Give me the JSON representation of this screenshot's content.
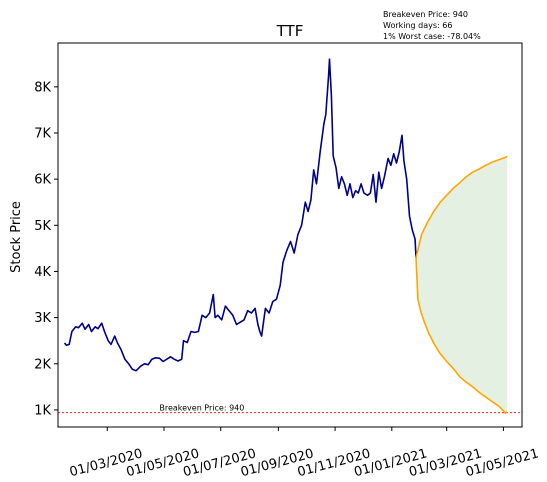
{
  "chart_data": {
    "type": "line",
    "title": "TTF",
    "ylabel": "Stock Price",
    "xlabel": "",
    "ylim": [
      630,
      8950
    ],
    "xlim": [
      "2020-01-08",
      "2021-05-21"
    ],
    "yticks": [
      {
        "value": 1000,
        "label": "1K"
      },
      {
        "value": 2000,
        "label": "2K"
      },
      {
        "value": 3000,
        "label": "3K"
      },
      {
        "value": 4000,
        "label": "4K"
      },
      {
        "value": 5000,
        "label": "5K"
      },
      {
        "value": 6000,
        "label": "6K"
      },
      {
        "value": 7000,
        "label": "7K"
      },
      {
        "value": 8000,
        "label": "8K"
      }
    ],
    "xticks": [
      {
        "date": "2020-03-01",
        "label": "01/03/2020"
      },
      {
        "date": "2020-05-01",
        "label": "01/05/2020"
      },
      {
        "date": "2020-07-01",
        "label": "01/07/2020"
      },
      {
        "date": "2020-09-01",
        "label": "01/09/2020"
      },
      {
        "date": "2020-11-01",
        "label": "01/11/2020"
      },
      {
        "date": "2021-01-01",
        "label": "01/01/2021"
      },
      {
        "date": "2021-03-01",
        "label": "01/03/2021"
      },
      {
        "date": "2021-05-01",
        "label": "01/05/2021"
      }
    ],
    "info_box": [
      "Breakeven Price: 940",
      "Working days: 66",
      "1% Worst case: -78.04%"
    ],
    "breakeven": {
      "value": 940,
      "label": "Breakeven Price: 940",
      "color": "#ff0000"
    },
    "colors": {
      "history": "#00008b",
      "projection": "#ffa500",
      "band": "#d6ead2"
    },
    "series": [
      {
        "role": "history",
        "points": [
          [
            "2020-01-15",
            2450
          ],
          [
            "2020-01-17",
            2400
          ],
          [
            "2020-01-20",
            2420
          ],
          [
            "2020-01-23",
            2700
          ],
          [
            "2020-01-27",
            2800
          ],
          [
            "2020-01-30",
            2780
          ],
          [
            "2020-02-03",
            2880
          ],
          [
            "2020-02-06",
            2750
          ],
          [
            "2020-02-10",
            2850
          ],
          [
            "2020-02-13",
            2700
          ],
          [
            "2020-02-17",
            2800
          ],
          [
            "2020-02-20",
            2760
          ],
          [
            "2020-02-24",
            2880
          ],
          [
            "2020-02-27",
            2700
          ],
          [
            "2020-03-02",
            2500
          ],
          [
            "2020-03-05",
            2420
          ],
          [
            "2020-03-09",
            2600
          ],
          [
            "2020-03-12",
            2450
          ],
          [
            "2020-03-16",
            2300
          ],
          [
            "2020-03-20",
            2100
          ],
          [
            "2020-03-24",
            2000
          ],
          [
            "2020-03-28",
            1880
          ],
          [
            "2020-04-01",
            1850
          ],
          [
            "2020-04-06",
            1950
          ],
          [
            "2020-04-10",
            2000
          ],
          [
            "2020-04-14",
            1980
          ],
          [
            "2020-04-18",
            2100
          ],
          [
            "2020-04-22",
            2130
          ],
          [
            "2020-04-26",
            2120
          ],
          [
            "2020-04-30",
            2050
          ],
          [
            "2020-05-04",
            2100
          ],
          [
            "2020-05-08",
            2150
          ],
          [
            "2020-05-12",
            2100
          ],
          [
            "2020-05-16",
            2060
          ],
          [
            "2020-05-20",
            2100
          ],
          [
            "2020-05-22",
            2500
          ],
          [
            "2020-05-26",
            2460
          ],
          [
            "2020-05-30",
            2700
          ],
          [
            "2020-06-03",
            2680
          ],
          [
            "2020-06-07",
            2700
          ],
          [
            "2020-06-11",
            3050
          ],
          [
            "2020-06-15",
            3000
          ],
          [
            "2020-06-19",
            3100
          ],
          [
            "2020-06-23",
            3500
          ],
          [
            "2020-06-25",
            3000
          ],
          [
            "2020-06-28",
            3050
          ],
          [
            "2020-07-02",
            2950
          ],
          [
            "2020-07-06",
            3250
          ],
          [
            "2020-07-10",
            3150
          ],
          [
            "2020-07-14",
            3050
          ],
          [
            "2020-07-18",
            2850
          ],
          [
            "2020-07-22",
            2900
          ],
          [
            "2020-07-26",
            2950
          ],
          [
            "2020-07-30",
            3150
          ],
          [
            "2020-08-03",
            3100
          ],
          [
            "2020-08-07",
            3200
          ],
          [
            "2020-08-10",
            2850
          ],
          [
            "2020-08-12",
            2700
          ],
          [
            "2020-08-14",
            2600
          ],
          [
            "2020-08-18",
            3200
          ],
          [
            "2020-08-22",
            3100
          ],
          [
            "2020-08-26",
            3350
          ],
          [
            "2020-08-30",
            3400
          ],
          [
            "2020-09-03",
            3700
          ],
          [
            "2020-09-06",
            4200
          ],
          [
            "2020-09-10",
            4450
          ],
          [
            "2020-09-14",
            4650
          ],
          [
            "2020-09-18",
            4400
          ],
          [
            "2020-09-22",
            4800
          ],
          [
            "2020-09-26",
            5000
          ],
          [
            "2020-09-30",
            5500
          ],
          [
            "2020-10-03",
            5300
          ],
          [
            "2020-10-06",
            5550
          ],
          [
            "2020-10-09",
            6200
          ],
          [
            "2020-10-12",
            5900
          ],
          [
            "2020-10-16",
            6600
          ],
          [
            "2020-10-20",
            7200
          ],
          [
            "2020-10-22",
            7400
          ],
          [
            "2020-10-25",
            8250
          ],
          [
            "2020-10-26",
            8600
          ],
          [
            "2020-10-28",
            7800
          ],
          [
            "2020-10-30",
            6500
          ],
          [
            "2020-11-02",
            6250
          ],
          [
            "2020-11-05",
            5800
          ],
          [
            "2020-11-08",
            6050
          ],
          [
            "2020-11-11",
            5900
          ],
          [
            "2020-11-14",
            5650
          ],
          [
            "2020-11-17",
            5900
          ],
          [
            "2020-11-20",
            5600
          ],
          [
            "2020-11-23",
            5750
          ],
          [
            "2020-11-26",
            5700
          ],
          [
            "2020-11-29",
            5900
          ],
          [
            "2020-12-02",
            5700
          ],
          [
            "2020-12-06",
            5650
          ],
          [
            "2020-12-09",
            5700
          ],
          [
            "2020-12-12",
            6100
          ],
          [
            "2020-12-15",
            5500
          ],
          [
            "2020-12-18",
            6150
          ],
          [
            "2020-12-21",
            5800
          ],
          [
            "2020-12-24",
            6050
          ],
          [
            "2020-12-28",
            6450
          ],
          [
            "2020-12-31",
            6300
          ],
          [
            "2021-01-03",
            6550
          ],
          [
            "2021-01-06",
            6350
          ],
          [
            "2021-01-09",
            6600
          ],
          [
            "2021-01-12",
            6950
          ],
          [
            "2021-01-14",
            6400
          ],
          [
            "2021-01-17",
            6000
          ],
          [
            "2021-01-20",
            5200
          ],
          [
            "2021-01-23",
            4900
          ],
          [
            "2021-01-26",
            4700
          ],
          [
            "2021-01-27",
            4300
          ]
        ]
      },
      {
        "role": "projection-upper",
        "points": [
          [
            "2021-01-27",
            4300
          ],
          [
            "2021-02-02",
            4800
          ],
          [
            "2021-02-08",
            5050
          ],
          [
            "2021-02-15",
            5300
          ],
          [
            "2021-02-22",
            5500
          ],
          [
            "2021-03-01",
            5650
          ],
          [
            "2021-03-08",
            5800
          ],
          [
            "2021-03-15",
            5920
          ],
          [
            "2021-03-22",
            6050
          ],
          [
            "2021-03-29",
            6150
          ],
          [
            "2021-04-05",
            6220
          ],
          [
            "2021-04-12",
            6300
          ],
          [
            "2021-04-19",
            6370
          ],
          [
            "2021-04-26",
            6420
          ],
          [
            "2021-05-03",
            6470
          ],
          [
            "2021-05-05",
            6500
          ]
        ]
      },
      {
        "role": "projection-lower",
        "points": [
          [
            "2021-01-27",
            4300
          ],
          [
            "2021-01-29",
            3400
          ],
          [
            "2021-02-01",
            3150
          ],
          [
            "2021-02-05",
            2900
          ],
          [
            "2021-02-10",
            2650
          ],
          [
            "2021-02-15",
            2450
          ],
          [
            "2021-02-21",
            2250
          ],
          [
            "2021-03-01",
            2050
          ],
          [
            "2021-03-08",
            1900
          ],
          [
            "2021-03-15",
            1720
          ],
          [
            "2021-03-22",
            1600
          ],
          [
            "2021-03-29",
            1500
          ],
          [
            "2021-04-05",
            1380
          ],
          [
            "2021-04-12",
            1280
          ],
          [
            "2021-04-19",
            1180
          ],
          [
            "2021-04-26",
            1080
          ],
          [
            "2021-05-01",
            980
          ],
          [
            "2021-05-03",
            930
          ],
          [
            "2021-05-05",
            960
          ]
        ]
      }
    ]
  }
}
